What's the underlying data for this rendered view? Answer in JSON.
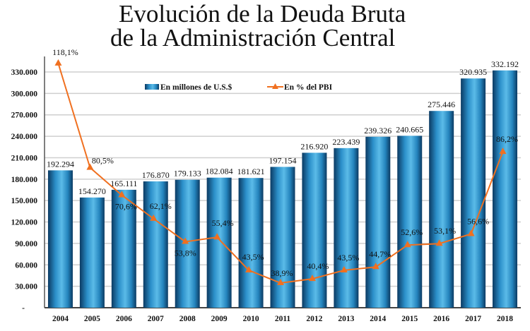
{
  "chart_data": {
    "type": "bar+line",
    "title_lines": [
      "Evolución de la Deuda Bruta",
      "de la Administración Central"
    ],
    "categories": [
      "2004",
      "2005",
      "2006",
      "2007",
      "2008",
      "2009",
      "2010",
      "2011",
      "2012",
      "2013",
      "2014",
      "2015",
      "2016",
      "2017",
      "2018"
    ],
    "series": [
      {
        "name": "En millones de U.S.$",
        "type": "bar",
        "values": [
          192294,
          154270,
          165111,
          176870,
          179133,
          182084,
          181621,
          197154,
          216920,
          223439,
          239326,
          240665,
          275446,
          320935,
          332192
        ],
        "labels": [
          "192.294",
          "154.270",
          "165.111",
          "176.870",
          "179.133",
          "182.084",
          "181.621",
          "197.154",
          "216.920",
          "223.439",
          "239.326",
          "240.665",
          "275.446",
          "320.935",
          "332.192"
        ],
        "color": "#2a8fc8"
      },
      {
        "name": "En % del PBI",
        "type": "line",
        "axis": "secondary",
        "values": [
          118.1,
          80.5,
          70.6,
          62.1,
          53.8,
          55.4,
          43.5,
          38.9,
          40.4,
          43.5,
          44.7,
          52.6,
          53.1,
          56.6,
          86.2
        ],
        "labels": [
          "118,1%",
          "80,5%",
          "70,6%",
          "62,1%",
          "53,8%",
          "55,4%",
          "43,5%",
          "38,9%",
          "40,4%",
          "43,5%",
          "44,7%",
          "52,6%",
          "53,1%",
          "56,6%",
          "86,2%"
        ],
        "color": "#f07020"
      }
    ],
    "y_ticks": [
      "-",
      "30.000",
      "60.000",
      "90.000",
      "120.000",
      "150.000",
      "180.000",
      "210.000",
      "240.000",
      "270.000",
      "300.000",
      "330.000"
    ],
    "ylim": [
      0,
      330000
    ],
    "y2lim": [
      30,
      115
    ],
    "grid": true,
    "legend": "top"
  }
}
